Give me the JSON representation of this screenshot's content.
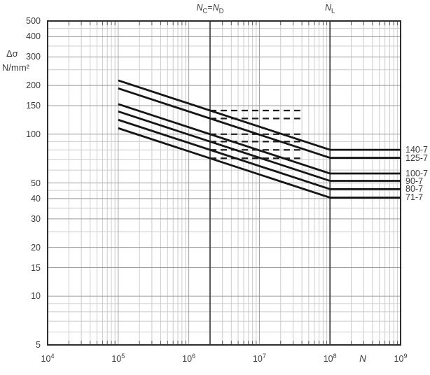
{
  "chart_data": {
    "type": "line",
    "title": "",
    "x_scale": "log",
    "y_scale": "log",
    "grid": "log-log, major and minor gridlines on",
    "legend_position": "right-outside, labels at end of each curve",
    "x_axis": {
      "label": "N",
      "min": 10000,
      "max": 1000000000,
      "ticks": [
        {
          "base": "10",
          "exp": "4",
          "value": 10000
        },
        {
          "base": "10",
          "exp": "5",
          "value": 100000
        },
        {
          "base": "10",
          "exp": "6",
          "value": 1000000
        },
        {
          "base": "10",
          "exp": "7",
          "value": 10000000
        },
        {
          "base": "10",
          "exp": "8",
          "value": 100000000
        },
        {
          "base": "10",
          "exp": "9",
          "value": 1000000000
        }
      ]
    },
    "y_axis": {
      "unit_line1": "Δσ",
      "unit_line2": "N/mm²",
      "min": 5,
      "max": 500,
      "ticks": [
        500,
        400,
        300,
        200,
        150,
        100,
        50,
        40,
        30,
        20,
        15,
        10,
        5
      ],
      "gridlines": [
        5,
        6,
        7,
        8,
        9,
        10,
        15,
        20,
        25,
        30,
        35,
        40,
        45,
        50,
        60,
        70,
        80,
        90,
        100,
        150,
        200,
        250,
        300,
        350,
        400,
        450,
        500
      ]
    },
    "reference_lines": [
      {
        "id": "nc-nd",
        "value": 2000000,
        "label_parts": [
          {
            "t": "N",
            "i": true
          },
          {
            "t": "C",
            "sub": true
          },
          {
            "t": "="
          },
          {
            "t": "N",
            "i": true
          },
          {
            "t": "D",
            "sub": true
          }
        ]
      },
      {
        "id": "nl",
        "value": 100000000,
        "label_parts": [
          {
            "t": "N",
            "i": true
          },
          {
            "t": "L",
            "sub": true
          }
        ]
      }
    ],
    "series": [
      {
        "name": "140-7",
        "points": [
          [
            100000,
            214.8
          ],
          [
            100000000,
            80.1
          ],
          [
            1000000000,
            80.1
          ]
        ]
      },
      {
        "name": "125-7",
        "points": [
          [
            100000,
            191.8
          ],
          [
            100000000,
            71.5
          ],
          [
            1000000000,
            71.5
          ]
        ]
      },
      {
        "name": "100-7",
        "points": [
          [
            100000,
            153.4
          ],
          [
            100000000,
            57.2
          ],
          [
            1000000000,
            57.2
          ]
        ]
      },
      {
        "name": "90-7",
        "points": [
          [
            100000,
            138.1
          ],
          [
            100000000,
            51.5
          ],
          [
            1000000000,
            51.5
          ]
        ]
      },
      {
        "name": "80-7",
        "points": [
          [
            100000,
            122.7
          ],
          [
            100000000,
            45.8
          ],
          [
            1000000000,
            45.8
          ]
        ]
      },
      {
        "name": "71-7",
        "points": [
          [
            100000,
            108.9
          ],
          [
            100000000,
            40.6
          ],
          [
            1000000000,
            40.6
          ]
        ]
      }
    ],
    "dashed_limits": [
      {
        "value": 140,
        "from": 2000000,
        "to": 38000000
      },
      {
        "value": 125,
        "from": 2000000,
        "to": 38000000
      },
      {
        "value": 100,
        "from": 2000000,
        "to": 38000000
      },
      {
        "value": 90,
        "from": 2000000,
        "to": 38000000
      },
      {
        "value": 80,
        "from": 2000000,
        "to": 38000000
      },
      {
        "value": 71,
        "from": 2000000,
        "to": 38000000
      }
    ],
    "colors": {
      "background": "#ffffff",
      "border": "#2e2e2e",
      "grid_major": "#9b9b9b",
      "grid_minor": "#cccccc",
      "reference_line": "#3c3c3c",
      "curve": "#161616",
      "dashed": "#1f1f1f",
      "text": "#3a3a3a"
    }
  }
}
